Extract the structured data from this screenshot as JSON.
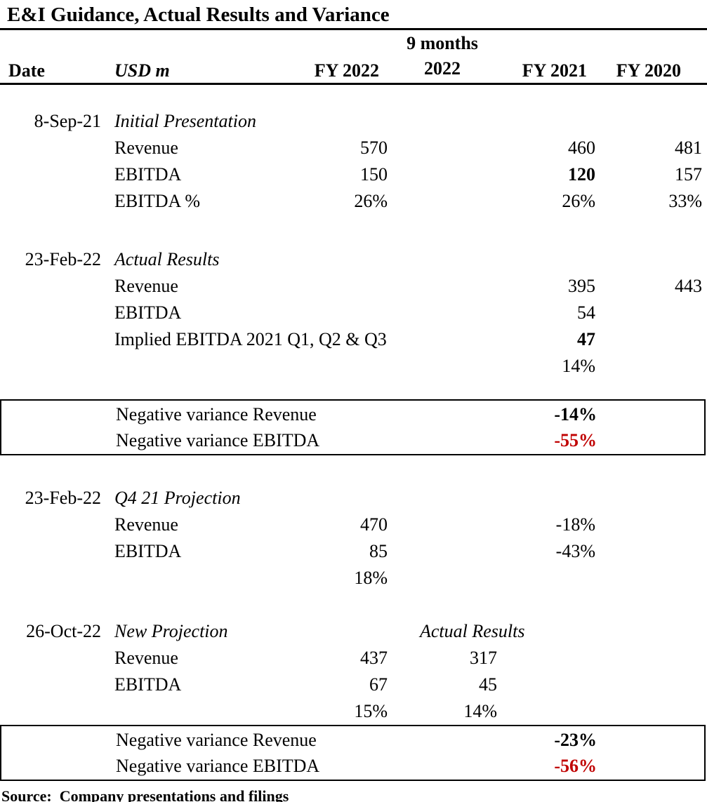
{
  "title": "E&I Guidance, Actual Results and Variance",
  "header": {
    "date": "Date",
    "usd_m": "USD m",
    "fy2022": "FY 2022",
    "m9_line1": "9 months",
    "m9_line2": "2022",
    "fy2021": "FY 2021",
    "fy2020": "FY 2020"
  },
  "colors": {
    "negative_red": "#c00000",
    "text": "#000000",
    "rule": "#000000"
  },
  "rows": [
    {
      "type": "spacer",
      "size": "a"
    },
    {
      "type": "row",
      "date": "8-Sep-21",
      "label": {
        "t": "Initial Presentation",
        "i": true
      }
    },
    {
      "type": "row",
      "label": {
        "t": "Revenue"
      },
      "fy2022": {
        "t": "570"
      },
      "fy2021": {
        "t": "460"
      },
      "fy2020": {
        "t": "481"
      }
    },
    {
      "type": "row",
      "label": {
        "t": "EBITDA"
      },
      "fy2022": {
        "t": "150"
      },
      "fy2021": {
        "t": "120",
        "b": true
      },
      "fy2020": {
        "t": "157"
      }
    },
    {
      "type": "row",
      "label": {
        "t": "EBITDA %"
      },
      "fy2022": {
        "t": "26%"
      },
      "fy2021": {
        "t": "26%"
      },
      "fy2020": {
        "t": "33%"
      }
    },
    {
      "type": "spacer",
      "size": "b"
    },
    {
      "type": "row",
      "date": "23-Feb-22",
      "label": {
        "t": "Actual Results",
        "i": true
      }
    },
    {
      "type": "row",
      "label": {
        "t": "Revenue"
      },
      "fy2021": {
        "t": "395"
      },
      "fy2020": {
        "t": "443"
      }
    },
    {
      "type": "row",
      "label": {
        "t": "EBITDA"
      },
      "fy2021": {
        "t": "54"
      }
    },
    {
      "type": "row",
      "label": {
        "t": "Implied EBITDA 2021 Q1, Q2 & Q3"
      },
      "fy2021": {
        "t": "47",
        "b": true
      }
    },
    {
      "type": "row",
      "fy2021": {
        "t": "14%"
      }
    },
    {
      "type": "spacer",
      "size": "c"
    },
    {
      "type": "box",
      "rows": [
        {
          "label": {
            "t": "Negative variance Revenue"
          },
          "fy2021": {
            "t": "-14%",
            "b": true
          }
        },
        {
          "label": {
            "t": "Negative variance EBITDA"
          },
          "fy2021": {
            "t": "-55%",
            "b": true,
            "r": true
          }
        }
      ]
    },
    {
      "type": "spacer",
      "size": "d"
    },
    {
      "type": "row",
      "date": "23-Feb-22",
      "label": {
        "t": "Q4 21 Projection",
        "i": true
      }
    },
    {
      "type": "row",
      "label": {
        "t": "Revenue"
      },
      "fy2022": {
        "t": "470"
      },
      "fy2021": {
        "t": "-18%"
      }
    },
    {
      "type": "row",
      "label": {
        "t": "EBITDA"
      },
      "fy2022": {
        "t": "85"
      },
      "fy2021": {
        "t": "-43%"
      }
    },
    {
      "type": "row",
      "fy2022": {
        "t": "18%"
      }
    },
    {
      "type": "spacer",
      "size": "e"
    },
    {
      "type": "row",
      "date": "26-Oct-22",
      "label": {
        "t": "New Projection",
        "i": true
      },
      "m9": {
        "t": "Actual Results",
        "i": true,
        "c": true
      }
    },
    {
      "type": "row",
      "label": {
        "t": "Revenue"
      },
      "fy2022": {
        "t": "437"
      },
      "m9": {
        "t": "317"
      }
    },
    {
      "type": "row",
      "label": {
        "t": "EBITDA"
      },
      "fy2022": {
        "t": "67"
      },
      "m9": {
        "t": "45"
      }
    },
    {
      "type": "row",
      "fy2022": {
        "t": "15%"
      },
      "m9": {
        "t": "14%"
      }
    },
    {
      "type": "box",
      "rows": [
        {
          "label": {
            "t": "Negative variance Revenue"
          },
          "fy2021": {
            "t": "-23%",
            "b": true
          }
        },
        {
          "label": {
            "t": "Negative variance EBITDA"
          },
          "fy2021": {
            "t": "-56%",
            "b": true,
            "r": true
          }
        }
      ]
    }
  ],
  "source": "Source:  Company presentations and filings"
}
